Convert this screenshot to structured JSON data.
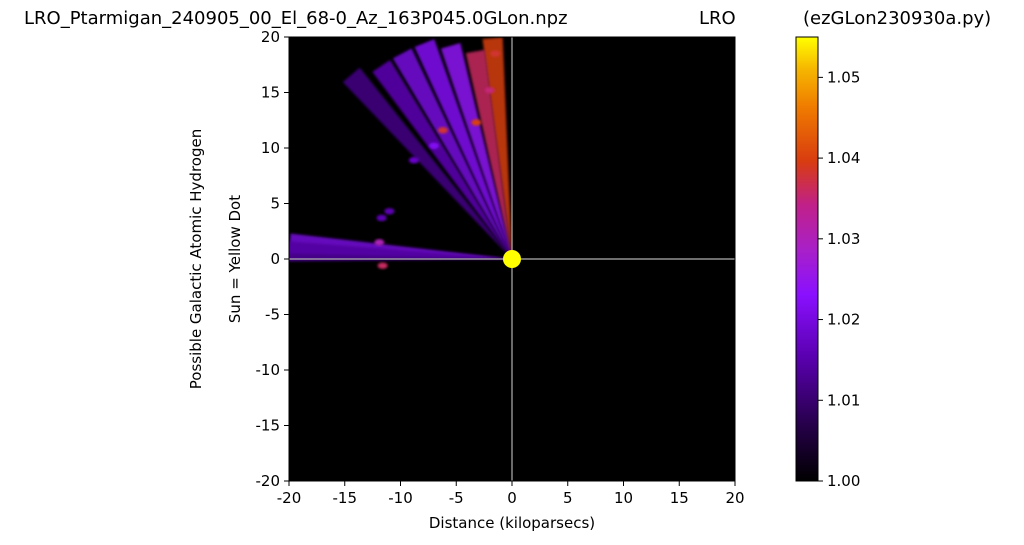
{
  "figure": {
    "title_left": "LRO_Ptarmigan_240905_00_El_68-0_Az_163P045.0GLon.npz",
    "title_center": "LRO",
    "title_right": "(ezGLon230930a.py)"
  },
  "chart_data": {
    "type": "heatmap",
    "title": "LRO_Ptarmigan_240905_00_El_68-0_Az_163P045.0GLon.npz",
    "xlabel": "Distance (kiloparsecs)",
    "ylabel": "Possible Galactic Atomic Hydrogen",
    "ylabel2": "Sun = Yellow Dot",
    "xlim": [
      -20,
      20
    ],
    "ylim": [
      -20,
      20
    ],
    "x_ticks": [
      -20,
      -15,
      -10,
      -5,
      0,
      5,
      10,
      15,
      20
    ],
    "y_ticks": [
      20,
      15,
      10,
      5,
      0,
      -5,
      -10,
      -15,
      -20
    ],
    "background": "#000000",
    "sun": {
      "x": 0,
      "y": 0,
      "color": "#ffff00"
    },
    "crosshair_color": "#b0b0b0",
    "colormap": "gnuplot",
    "colorbar": {
      "range": [
        1.0,
        1.055
      ],
      "ticks": [
        "1.05",
        "1.04",
        "1.03",
        "1.02",
        "1.01",
        "1.00"
      ],
      "tick_values": [
        1.05,
        1.04,
        1.03,
        1.02,
        1.01,
        1.0
      ]
    },
    "emission_rays": [
      {
        "angle_deg": 95,
        "r_max": 20,
        "level": 1.04
      },
      {
        "angle_deg": 100,
        "r_max": 19,
        "level": 1.036
      },
      {
        "angle_deg": 106,
        "r_max": 20,
        "level": 1.024
      },
      {
        "angle_deg": 112,
        "r_max": 21,
        "level": 1.022
      },
      {
        "angle_deg": 118,
        "r_max": 21,
        "level": 1.02
      },
      {
        "angle_deg": 124,
        "r_max": 21,
        "level": 1.016
      },
      {
        "angle_deg": 131,
        "r_max": 22,
        "level": 1.012
      },
      {
        "angle_deg": 176,
        "r_max": 20,
        "level": 1.02
      },
      {
        "angle_deg": 178,
        "r_max": 21,
        "level": 1.014
      }
    ],
    "hotspots": [
      {
        "x": -6.2,
        "y": 11.6,
        "value": 1.038
      },
      {
        "x": -3.2,
        "y": 12.3,
        "value": 1.04
      },
      {
        "x": -11.6,
        "y": -0.6,
        "value": 1.036
      },
      {
        "x": -11.9,
        "y": 1.5,
        "value": 1.03
      },
      {
        "x": -7.0,
        "y": 10.2,
        "value": 1.022
      },
      {
        "x": -8.8,
        "y": 8.9,
        "value": 1.018
      },
      {
        "x": -11.0,
        "y": 4.3,
        "value": 1.016
      },
      {
        "x": -11.7,
        "y": 3.7,
        "value": 1.016
      },
      {
        "x": -2.0,
        "y": 15.2,
        "value": 1.035
      },
      {
        "x": -1.5,
        "y": 18.5,
        "value": 1.038
      }
    ]
  }
}
